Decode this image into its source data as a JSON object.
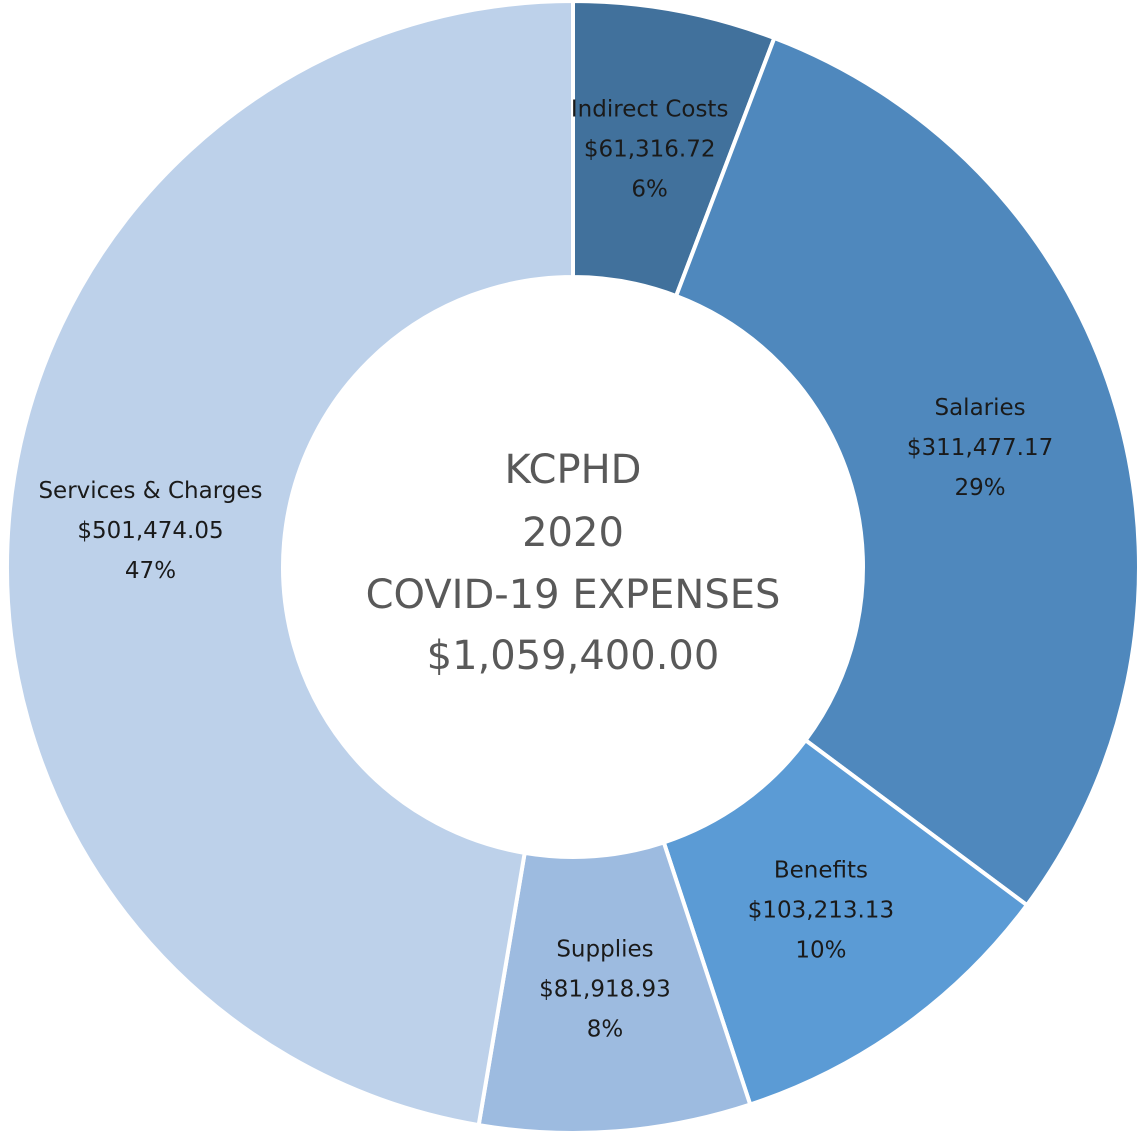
{
  "chart_data": {
    "type": "donut",
    "center_text": [
      "KCPHD",
      "2020",
      "COVID-19 EXPENSES",
      "$1,059,400.00"
    ],
    "categories": [
      "Indirect Costs",
      "Salaries",
      "Benefits",
      "Supplies",
      "Services & Charges"
    ],
    "values": [
      61316.72,
      311477.17,
      103213.13,
      81918.93,
      501474.05
    ],
    "value_labels": [
      "$61,316.72",
      "$311,477.17",
      "$103,213.13",
      "$81,918.93",
      "$501,474.05"
    ],
    "percent_labels": [
      "6%",
      "29%",
      "10%",
      "8%",
      "47%"
    ],
    "colors": [
      "#41719c",
      "#4f88bd",
      "#5b9bd5",
      "#9dbbe0",
      "#bdd1ea"
    ]
  }
}
